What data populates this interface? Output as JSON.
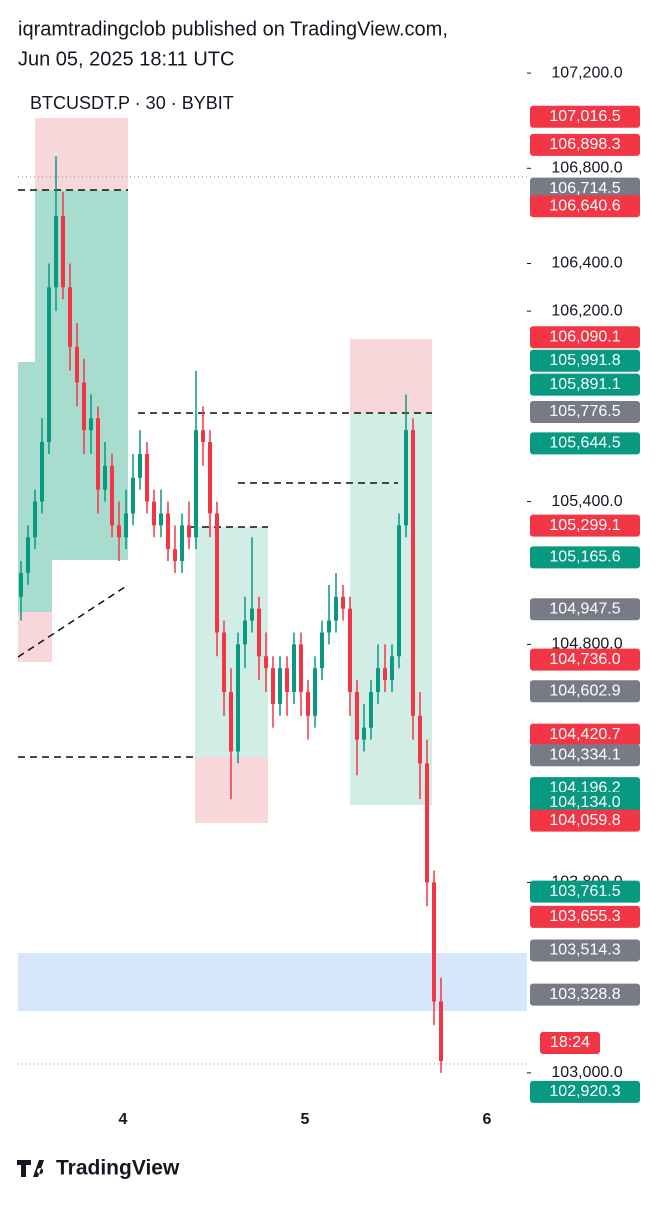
{
  "header": {
    "publisher": "iqramtradingclob published on TradingView.com,",
    "date": "Jun 05, 2025 18:11 UTC"
  },
  "chart_data": {
    "type": "candlestick",
    "title": "BTCUSDT.P · 30 · BYBIT",
    "up_color": "#089981",
    "down_color": "#f23645",
    "candles": [
      [
        105000,
        105150,
        104900,
        105100
      ],
      [
        105100,
        105300,
        105050,
        105250
      ],
      [
        105250,
        105450,
        105200,
        105400
      ],
      [
        105400,
        105750,
        105350,
        105650
      ],
      [
        105650,
        106400,
        105600,
        106300
      ],
      [
        106300,
        106850,
        106200,
        106600
      ],
      [
        106600,
        106700,
        106250,
        106300
      ],
      [
        106300,
        106400,
        105950,
        106050
      ],
      [
        106050,
        106150,
        105800,
        105900
      ],
      [
        105900,
        106000,
        105600,
        105700
      ],
      [
        105700,
        105850,
        105600,
        105750
      ],
      [
        105750,
        105800,
        105350,
        105450
      ],
      [
        105450,
        105650,
        105400,
        105550
      ],
      [
        105550,
        105600,
        105250,
        105300
      ],
      [
        105300,
        105400,
        105150,
        105250
      ],
      [
        105250,
        105450,
        105200,
        105350
      ],
      [
        105350,
        105600,
        105300,
        105500
      ],
      [
        105500,
        105700,
        105450,
        105600
      ],
      [
        105600,
        105650,
        105350,
        105400
      ],
      [
        105400,
        105450,
        105250,
        105300
      ],
      [
        105300,
        105450,
        105250,
        105350
      ],
      [
        105350,
        105400,
        105150,
        105200
      ],
      [
        105200,
        105300,
        105100,
        105150
      ],
      [
        105150,
        105350,
        105100,
        105300
      ],
      [
        105300,
        105400,
        105200,
        105250
      ],
      [
        105250,
        105950,
        105200,
        105700
      ],
      [
        105700,
        105800,
        105550,
        105650
      ],
      [
        105650,
        105700,
        105250,
        105350
      ],
      [
        105350,
        105400,
        104750,
        104850
      ],
      [
        104850,
        104900,
        104500,
        104600
      ],
      [
        104600,
        104700,
        104150,
        104350
      ],
      [
        104350,
        104850,
        104300,
        104800
      ],
      [
        104800,
        105000,
        104700,
        104900
      ],
      [
        104900,
        105250,
        104850,
        104950
      ],
      [
        104950,
        105000,
        104650,
        104750
      ],
      [
        104750,
        104850,
        104600,
        104700
      ],
      [
        104700,
        104750,
        104450,
        104550
      ],
      [
        104550,
        104750,
        104500,
        104700
      ],
      [
        104700,
        104750,
        104500,
        104600
      ],
      [
        104600,
        104850,
        104550,
        104800
      ],
      [
        104800,
        104850,
        104500,
        104600
      ],
      [
        104600,
        104650,
        104400,
        104500
      ],
      [
        104500,
        104750,
        104450,
        104700
      ],
      [
        104700,
        104900,
        104650,
        104850
      ],
      [
        104850,
        105050,
        104800,
        104900
      ],
      [
        104900,
        105100,
        104850,
        105000
      ],
      [
        105000,
        105050,
        104900,
        104950
      ],
      [
        104950,
        105000,
        104500,
        104600
      ],
      [
        104600,
        104650,
        104250,
        104400
      ],
      [
        104400,
        104550,
        104350,
        104450
      ],
      [
        104450,
        104650,
        104400,
        104600
      ],
      [
        104600,
        104800,
        104550,
        104700
      ],
      [
        104700,
        104800,
        104600,
        104650
      ],
      [
        104650,
        104800,
        104600,
        104750
      ],
      [
        104750,
        105350,
        104700,
        105300
      ],
      [
        105300,
        105850,
        105250,
        105700
      ],
      [
        105700,
        105750,
        104400,
        104500
      ],
      [
        104500,
        104600,
        104150,
        104300
      ],
      [
        104300,
        104400,
        103700,
        103800
      ],
      [
        103800,
        103850,
        103200,
        103300
      ],
      [
        103300,
        103400,
        103000,
        103050
      ]
    ],
    "ylim": [
      102886,
      107234
    ],
    "yticks": [
      {
        "value": 107200,
        "label": "107,200.0"
      },
      {
        "value": 106800,
        "label": "106,800.0"
      },
      {
        "value": 106400,
        "label": "106,400.0"
      },
      {
        "value": 106200,
        "label": "106,200.0"
      },
      {
        "value": 105400,
        "label": "105,400.0"
      },
      {
        "value": 104800,
        "label": "104,800.0"
      },
      {
        "value": 103800,
        "label": "103,800.0"
      },
      {
        "value": 103000,
        "label": "103,000.0"
      }
    ],
    "price_tags": [
      {
        "value": 107016.5,
        "label": "107,016.5",
        "color": "#f23645"
      },
      {
        "value": 106898.3,
        "label": "106,898.3",
        "color": "#f23645"
      },
      {
        "value": 106714.5,
        "label": "106,714.5",
        "color": "#787b86"
      },
      {
        "value": 106640.6,
        "label": "106,640.6",
        "color": "#f23645"
      },
      {
        "value": 106090.1,
        "label": "106,090.1",
        "color": "#f23645"
      },
      {
        "value": 105991.8,
        "label": "105,991.8",
        "color": "#089981"
      },
      {
        "value": 105891.1,
        "label": "105,891.1",
        "color": "#089981"
      },
      {
        "value": 105776.5,
        "label": "105,776.5",
        "color": "#787b86"
      },
      {
        "value": 105644.5,
        "label": "105,644.5",
        "color": "#089981"
      },
      {
        "value": 105299.1,
        "label": "105,299.1",
        "color": "#f23645"
      },
      {
        "value": 105165.6,
        "label": "105,165.6",
        "color": "#089981"
      },
      {
        "value": 104947.5,
        "label": "104,947.5",
        "color": "#787b86"
      },
      {
        "value": 104736.0,
        "label": "104,736.0",
        "color": "#f23645"
      },
      {
        "value": 104602.9,
        "label": "104,602.9",
        "color": "#787b86"
      },
      {
        "value": 104420.7,
        "label": "104,420.7",
        "color": "#f23645"
      },
      {
        "value": 104334.1,
        "label": "104,334.1",
        "color": "#787b86"
      },
      {
        "value": 104196.2,
        "label": "104,196.2",
        "color": "#089981"
      },
      {
        "value": 104134.0,
        "label": "104,134.0",
        "color": "#089981"
      },
      {
        "value": 104059.8,
        "label": "104,059.8",
        "color": "#f23645"
      },
      {
        "value": 103761.5,
        "label": "103,761.5",
        "color": "#089981"
      },
      {
        "value": 103655.3,
        "label": "103,655.3",
        "color": "#f23645"
      },
      {
        "value": 103514.3,
        "label": "103,514.3",
        "color": "#787b86"
      },
      {
        "value": 103328.8,
        "label": "103,328.8",
        "color": "#787b86"
      },
      {
        "value": 102920.3,
        "label": "102,920.3",
        "color": "#089981"
      }
    ],
    "countdown": "18:24",
    "x_labels": [
      "4",
      "5",
      "6"
    ]
  },
  "footer": {
    "brand": "TradingView"
  }
}
